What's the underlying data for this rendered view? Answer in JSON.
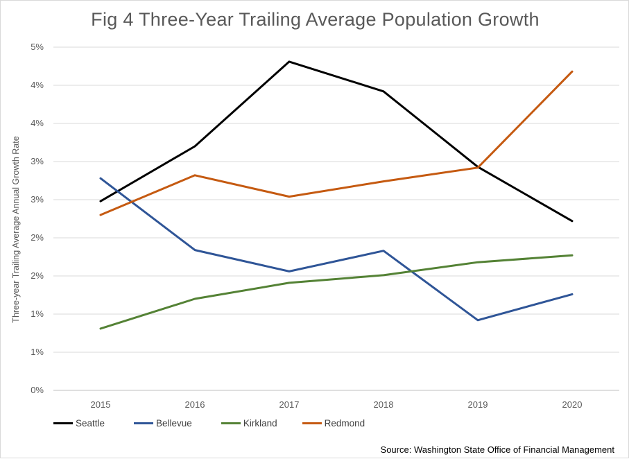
{
  "chart_data": {
    "type": "line",
    "title": "Fig 4 Three-Year Trailing Average Population Growth",
    "xlabel": "",
    "ylabel": "Three-year Trailing Average Annual Growth Rate",
    "categories": [
      "2015",
      "2016",
      "2017",
      "2018",
      "2019",
      "2020"
    ],
    "ylim": [
      0,
      4.5
    ],
    "y_tick_values": [
      0,
      0.5,
      1,
      1.5,
      2,
      2.5,
      3,
      3.5,
      4,
      4.5
    ],
    "y_tick_labels": [
      "0%",
      "1%",
      "1%",
      "2%",
      "2%",
      "3%",
      "3%",
      "4%",
      "4%",
      "5%"
    ],
    "grid": true,
    "legend_position": "bottom-left",
    "series": [
      {
        "name": "Seattle",
        "color": "#000000",
        "values": [
          2.48,
          3.2,
          4.31,
          3.92,
          2.93,
          2.22
        ]
      },
      {
        "name": "Bellevue",
        "color": "#2f5597",
        "values": [
          2.78,
          1.84,
          1.56,
          1.83,
          0.92,
          1.26
        ]
      },
      {
        "name": "Kirkland",
        "color": "#548235",
        "values": [
          0.81,
          1.2,
          1.41,
          1.51,
          1.68,
          1.77
        ]
      },
      {
        "name": "Redmond",
        "color": "#c55a11",
        "values": [
          2.3,
          2.82,
          2.54,
          2.74,
          2.92,
          4.18
        ]
      }
    ]
  },
  "source": "Source: Washington State Office of Financial Management"
}
